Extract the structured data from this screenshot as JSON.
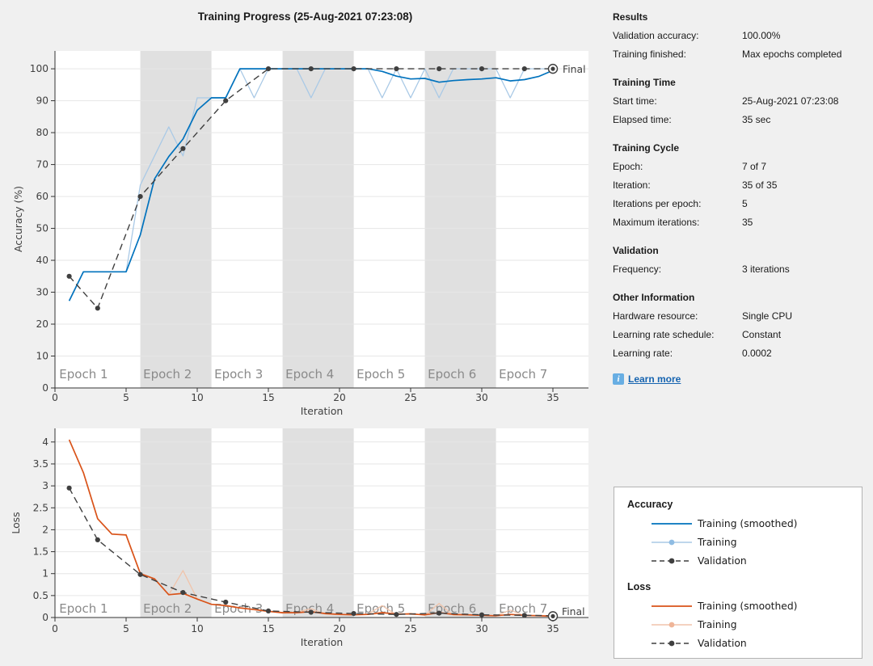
{
  "title": "Training Progress (25-Aug-2021 07:23:08)",
  "panel": {
    "sections": [
      {
        "header": "Results",
        "rows": [
          {
            "label": "Validation accuracy:",
            "value": "100.00%"
          },
          {
            "label": "Training finished:",
            "value": "Max epochs completed"
          }
        ]
      },
      {
        "header": "Training Time",
        "rows": [
          {
            "label": "Start time:",
            "value": "25-Aug-2021 07:23:08"
          },
          {
            "label": "Elapsed time:",
            "value": "35 sec"
          }
        ]
      },
      {
        "header": "Training Cycle",
        "rows": [
          {
            "label": "Epoch:",
            "value": "7 of 7"
          },
          {
            "label": "Iteration:",
            "value": "35 of 35"
          },
          {
            "label": "Iterations per epoch:",
            "value": "5"
          },
          {
            "label": "Maximum iterations:",
            "value": "35"
          }
        ]
      },
      {
        "header": "Validation",
        "rows": [
          {
            "label": "Frequency:",
            "value": "3 iterations"
          }
        ]
      },
      {
        "header": "Other Information",
        "rows": [
          {
            "label": "Hardware resource:",
            "value": "Single CPU"
          },
          {
            "label": "Learning rate schedule:",
            "value": "Constant"
          },
          {
            "label": "Learning rate:",
            "value": "0.0002"
          }
        ]
      }
    ],
    "info_icon": "i",
    "learn_more": "Learn more"
  },
  "legend": {
    "groups": [
      {
        "header": "Accuracy",
        "items": [
          {
            "label": "Training (smoothed)",
            "swatch": "solid",
            "color": "#0072BD"
          },
          {
            "label": "Training",
            "swatch": "marker-line",
            "color": "#A9C9E6",
            "marker_color": "#8FBCE3"
          },
          {
            "label": "Validation",
            "swatch": "dashed-marker",
            "color": "#3F3F3F",
            "marker_color": "#3F3F3F"
          }
        ]
      },
      {
        "header": "Loss",
        "items": [
          {
            "label": "Training (smoothed)",
            "swatch": "solid",
            "color": "#D95319"
          },
          {
            "label": "Training",
            "swatch": "marker-line",
            "color": "#F0C4AB",
            "marker_color": "#EFB598"
          },
          {
            "label": "Validation",
            "swatch": "dashed-marker",
            "color": "#3F3F3F",
            "marker_color": "#3F3F3F"
          }
        ]
      }
    ]
  },
  "colors": {
    "figure_bg": "#F0F0F0",
    "plot_bg": "#FFFFFF",
    "band": "#E0E0E0",
    "grid": "#E6E6E6",
    "axis": "#333333",
    "tick": "#3F3F3F",
    "epoch_label": "#8A8A8A",
    "validation": "#3F3F3F",
    "accuracy_smoothed": "#0072BD",
    "accuracy_raw": "#A9C9E6",
    "loss_smoothed": "#D95319",
    "loss_raw": "#F0C4AB",
    "link": "#1664B0",
    "info_icon_bg": "#68AEE3"
  },
  "chart_data": [
    {
      "id": "accuracy",
      "type": "line",
      "xlabel": "Iteration",
      "ylabel": "Accuracy (%)",
      "xlim": [
        0,
        37.5
      ],
      "ylim": [
        0,
        105.6
      ],
      "xticks": [
        0,
        5,
        10,
        15,
        20,
        25,
        30,
        35
      ],
      "xtick_labels": [
        "0",
        "5",
        "10",
        "15",
        "20",
        "25",
        "30",
        "35"
      ],
      "yticks": [
        0,
        10,
        20,
        30,
        40,
        50,
        60,
        70,
        80,
        90,
        100
      ],
      "ytick_labels": [
        "0",
        "10",
        "20",
        "30",
        "40",
        "50",
        "60",
        "70",
        "80",
        "90",
        "100"
      ],
      "epochs": [
        {
          "label": "Epoch 1",
          "start": 1,
          "end": 6,
          "shaded": false,
          "label_x": 0.3
        },
        {
          "label": "Epoch 2",
          "start": 6,
          "end": 11,
          "shaded": true,
          "label_x": 6.2
        },
        {
          "label": "Epoch 3",
          "start": 11,
          "end": 16,
          "shaded": false,
          "label_x": 11.2
        },
        {
          "label": "Epoch 4",
          "start": 16,
          "end": 21,
          "shaded": true,
          "label_x": 16.2
        },
        {
          "label": "Epoch 5",
          "start": 21,
          "end": 26,
          "shaded": false,
          "label_x": 21.2
        },
        {
          "label": "Epoch 6",
          "start": 26,
          "end": 31,
          "shaded": true,
          "label_x": 26.2
        },
        {
          "label": "Epoch 7",
          "start": 31,
          "end": 36,
          "shaded": false,
          "label_x": 31.2
        }
      ],
      "series": [
        {
          "name": "Training",
          "style": "solid",
          "width": 1.3,
          "color": "#A9C9E6",
          "x": [
            1,
            2,
            3,
            4,
            5,
            6,
            7,
            8,
            9,
            10,
            11,
            12,
            13,
            14,
            15,
            16,
            17,
            18,
            19,
            20,
            21,
            22,
            23,
            24,
            25,
            26,
            27,
            28,
            29,
            30,
            31,
            32,
            33,
            34,
            35
          ],
          "y": [
            27.3,
            36.4,
            36.4,
            36.4,
            36.4,
            63.6,
            72.7,
            81.8,
            72.7,
            90.9,
            90.9,
            90.9,
            100,
            90.9,
            100,
            100,
            100,
            90.9,
            100,
            100,
            100,
            100,
            90.9,
            100,
            90.9,
            100,
            90.9,
            100,
            100,
            100,
            100,
            90.9,
            100,
            100,
            100
          ]
        },
        {
          "name": "Training (smoothed)",
          "style": "solid",
          "width": 1.7,
          "color": "#0072BD",
          "x": [
            1,
            2,
            3,
            4,
            5,
            6,
            7,
            8,
            9,
            10,
            11,
            12,
            13,
            14,
            15,
            16,
            17,
            18,
            19,
            20,
            21,
            22,
            23,
            24,
            25,
            26,
            27,
            28,
            29,
            30,
            31,
            32,
            33,
            34,
            35
          ],
          "y": [
            27.3,
            36.4,
            36.4,
            36.4,
            36.4,
            48,
            65.5,
            72.5,
            78,
            87,
            90.9,
            90.9,
            100,
            100,
            100,
            100,
            100,
            100,
            100,
            100,
            100,
            100,
            99.2,
            97.7,
            96.8,
            97,
            95.8,
            96.3,
            96.6,
            96.8,
            97.2,
            96.2,
            96.6,
            97.6,
            99.5
          ]
        },
        {
          "name": "Validation",
          "style": "dashed",
          "width": 1.4,
          "color": "#3F3F3F",
          "marker": "dot",
          "marker_color": "#3F3F3F",
          "x": [
            1,
            3,
            6,
            9,
            12,
            15,
            18,
            21,
            24,
            27,
            30,
            33,
            35
          ],
          "y": [
            35,
            25,
            60,
            75,
            90,
            100,
            100,
            100,
            100,
            100,
            100,
            100,
            100
          ]
        }
      ],
      "final": {
        "x": 35,
        "y": 100,
        "label": "Final"
      }
    },
    {
      "id": "loss",
      "type": "line",
      "xlabel": "Iteration",
      "ylabel": "Loss",
      "xlim": [
        0,
        37.5
      ],
      "ylim": [
        0,
        4.31
      ],
      "xticks": [
        0,
        5,
        10,
        15,
        20,
        25,
        30,
        35
      ],
      "xtick_labels": [
        "0",
        "5",
        "10",
        "15",
        "20",
        "25",
        "30",
        "35"
      ],
      "yticks": [
        0,
        0.5,
        1,
        1.5,
        2,
        2.5,
        3,
        3.5,
        4
      ],
      "ytick_labels": [
        "0",
        "0.5",
        "1",
        "1.5",
        "2",
        "2.5",
        "3",
        "3.5",
        "4"
      ],
      "epochs": [
        {
          "label": "Epoch 1",
          "start": 1,
          "end": 6,
          "shaded": false,
          "label_x": 0.3
        },
        {
          "label": "Epoch 2",
          "start": 6,
          "end": 11,
          "shaded": true,
          "label_x": 6.2
        },
        {
          "label": "Epoch 3",
          "start": 11,
          "end": 16,
          "shaded": false,
          "label_x": 11.2
        },
        {
          "label": "Epoch 4",
          "start": 16,
          "end": 21,
          "shaded": true,
          "label_x": 16.2
        },
        {
          "label": "Epoch 5",
          "start": 21,
          "end": 26,
          "shaded": false,
          "label_x": 21.2
        },
        {
          "label": "Epoch 6",
          "start": 26,
          "end": 31,
          "shaded": true,
          "label_x": 26.2
        },
        {
          "label": "Epoch 7",
          "start": 31,
          "end": 36,
          "shaded": false,
          "label_x": 31.2
        }
      ],
      "series": [
        {
          "name": "Training",
          "style": "solid",
          "width": 1.3,
          "color": "#F0C4AB",
          "x": [
            1,
            2,
            3,
            4,
            5,
            6,
            7,
            8,
            9,
            10,
            11,
            12,
            13,
            14,
            15,
            16,
            17,
            18,
            19,
            20,
            21,
            22,
            23,
            24,
            25,
            26,
            27,
            28,
            29,
            30,
            31,
            32,
            33,
            34,
            35
          ],
          "y": [
            4.05,
            3.3,
            2.25,
            1.9,
            1.88,
            1.0,
            0.88,
            0.52,
            1.07,
            0.42,
            0.3,
            0.28,
            0.22,
            0.18,
            0.14,
            0.1,
            0.12,
            0.2,
            0.08,
            0.07,
            0.06,
            0.08,
            0.27,
            0.06,
            0.1,
            0.05,
            0.32,
            0.05,
            0.06,
            0.05,
            0.04,
            0.17,
            0.04,
            0.05,
            0.03
          ]
        },
        {
          "name": "Training (smoothed)",
          "style": "solid",
          "width": 1.7,
          "color": "#D95319",
          "x": [
            1,
            2,
            3,
            4,
            5,
            6,
            7,
            8,
            9,
            10,
            11,
            12,
            13,
            14,
            15,
            16,
            17,
            18,
            19,
            20,
            21,
            22,
            23,
            24,
            25,
            26,
            27,
            28,
            29,
            30,
            31,
            32,
            33,
            34,
            35
          ],
          "y": [
            4.05,
            3.3,
            2.25,
            1.9,
            1.88,
            1.0,
            0.88,
            0.52,
            0.55,
            0.42,
            0.3,
            0.27,
            0.22,
            0.18,
            0.14,
            0.11,
            0.11,
            0.13,
            0.09,
            0.07,
            0.06,
            0.07,
            0.11,
            0.08,
            0.08,
            0.06,
            0.11,
            0.07,
            0.06,
            0.05,
            0.04,
            0.07,
            0.05,
            0.04,
            0.03
          ]
        },
        {
          "name": "Validation",
          "style": "dashed",
          "width": 1.4,
          "color": "#3F3F3F",
          "marker": "dot",
          "marker_color": "#3F3F3F",
          "x": [
            1,
            3,
            6,
            9,
            12,
            15,
            18,
            21,
            24,
            27,
            30,
            33,
            35
          ],
          "y": [
            2.95,
            1.77,
            0.98,
            0.57,
            0.35,
            0.15,
            0.12,
            0.09,
            0.07,
            0.1,
            0.06,
            0.05,
            0.04
          ]
        }
      ],
      "final": {
        "x": 35,
        "y": 0.03,
        "label": "Final"
      }
    }
  ]
}
